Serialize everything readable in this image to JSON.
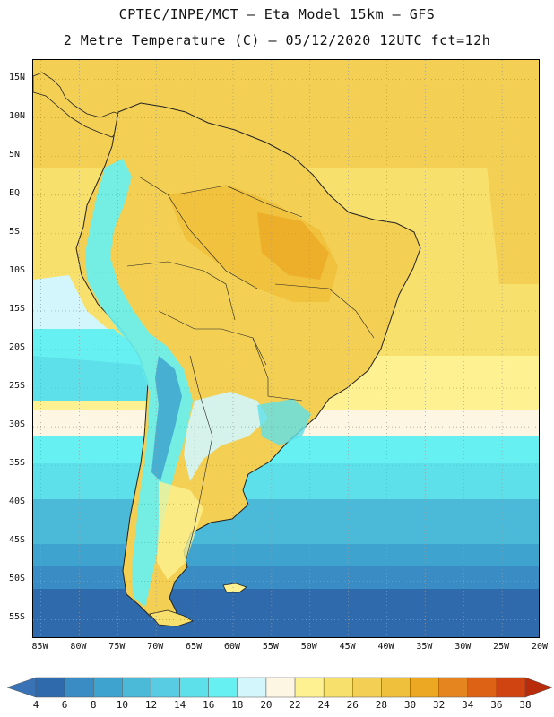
{
  "header": {
    "title_line1": "CPTEC/INPE/MCT –  Eta Model 15km – GFS",
    "title_line2": "2 Metre Temperature (C) – 05/12/2020 12UTC fct=12h"
  },
  "map": {
    "lat_labels": [
      "15N",
      "10N",
      "5N",
      "EQ",
      "5S",
      "10S",
      "15S",
      "20S",
      "25S",
      "30S",
      "35S",
      "40S",
      "45S",
      "50S",
      "55S"
    ],
    "lat_values": [
      15,
      10,
      5,
      0,
      -5,
      -10,
      -15,
      -20,
      -25,
      -30,
      -35,
      -40,
      -45,
      -50,
      -55
    ],
    "lon_labels": [
      "85W",
      "80W",
      "75W",
      "70W",
      "65W",
      "60W",
      "55W",
      "50W",
      "45W",
      "40W",
      "35W",
      "30W",
      "25W",
      "20W"
    ],
    "lon_values": [
      -85,
      -80,
      -75,
      -70,
      -65,
      -60,
      -55,
      -50,
      -45,
      -40,
      -35,
      -30,
      -25,
      -20
    ],
    "lat_range": [
      -57.5,
      17.5
    ],
    "lon_range": [
      -86,
      -20
    ],
    "gridlines": "dotted"
  },
  "colorbar": {
    "labels": [
      "4",
      "6",
      "8",
      "10",
      "12",
      "14",
      "16",
      "18",
      "20",
      "22",
      "24",
      "26",
      "28",
      "30",
      "32",
      "34",
      "36",
      "38"
    ],
    "colors": [
      "#3a73b5",
      "#2e6aac",
      "#3a8cc4",
      "#3fa3cf",
      "#4bbad9",
      "#58cce3",
      "#5ee0ea",
      "#66f0f2",
      "#d2f6fb",
      "#fdf6e3",
      "#fdf191",
      "#f8e06c",
      "#f3cf54",
      "#efc03c",
      "#eca823",
      "#e5851f",
      "#de6216",
      "#cf4410",
      "#b82c0c"
    ]
  },
  "colors": {
    "land_outline": "#222222",
    "ocean_cold": "#3a73b5",
    "ocean_warm": "#f3cf54"
  }
}
